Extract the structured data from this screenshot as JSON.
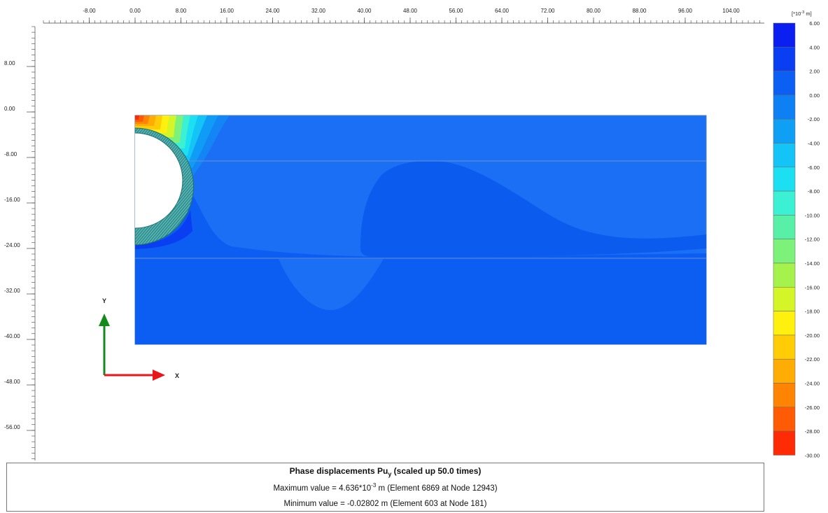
{
  "plot": {
    "x_ticks": [
      "-8.00",
      "0.00",
      "8.00",
      "16.00",
      "24.00",
      "32.00",
      "40.00",
      "48.00",
      "56.00",
      "64.00",
      "72.00",
      "80.00",
      "88.00",
      "96.00",
      "104.00"
    ],
    "y_ticks": [
      "8.00",
      "0.00",
      "-8.00",
      "-16.00",
      "-24.00",
      "-32.00",
      "-40.00",
      "-48.00",
      "-56.00"
    ],
    "axis_x_label": "X",
    "axis_y_label": "Y",
    "colors": {
      "background_field": "#1a6ff5",
      "deep_field": "#0c5ef2",
      "tunnel_lining": "#2a8a8a",
      "axis_x_arrow": "#e8151b",
      "axis_y_arrow": "#158a1c"
    }
  },
  "legend": {
    "unit_prefix": "[*10",
    "unit_exp": "-3",
    "unit_suffix": " m]",
    "labels": [
      "6.00",
      "4.00",
      "2.00",
      "0.00",
      "-2.00",
      "-4.00",
      "-6.00",
      "-8.00",
      "-10.00",
      "-12.00",
      "-14.00",
      "-16.00",
      "-18.00",
      "-20.00",
      "-22.00",
      "-24.00",
      "-26.00",
      "-28.00",
      "-30.00"
    ],
    "colors": [
      "#0a1ff0",
      "#0a3ef2",
      "#0b5ff3",
      "#0d80f4",
      "#0fa0f6",
      "#15c4f6",
      "#1cdff2",
      "#3cf0d4",
      "#58f0a6",
      "#7cf27a",
      "#a6f24c",
      "#d4f528",
      "#fff00d",
      "#ffcc06",
      "#ffac05",
      "#ff8404",
      "#ff5a04",
      "#fe2b05"
    ]
  },
  "info": {
    "title_main": "Phase displacements Pu",
    "title_sub": "y",
    "title_suffix": " (scaled up 50.0 times)",
    "max_prefix": "Maximum value = 4.636*10",
    "max_exp": "-3",
    "max_suffix": " m (Element 6869 at Node 12943)",
    "min_text": "Minimum value = -0.02802 m (Element 603 at Node 181)"
  }
}
